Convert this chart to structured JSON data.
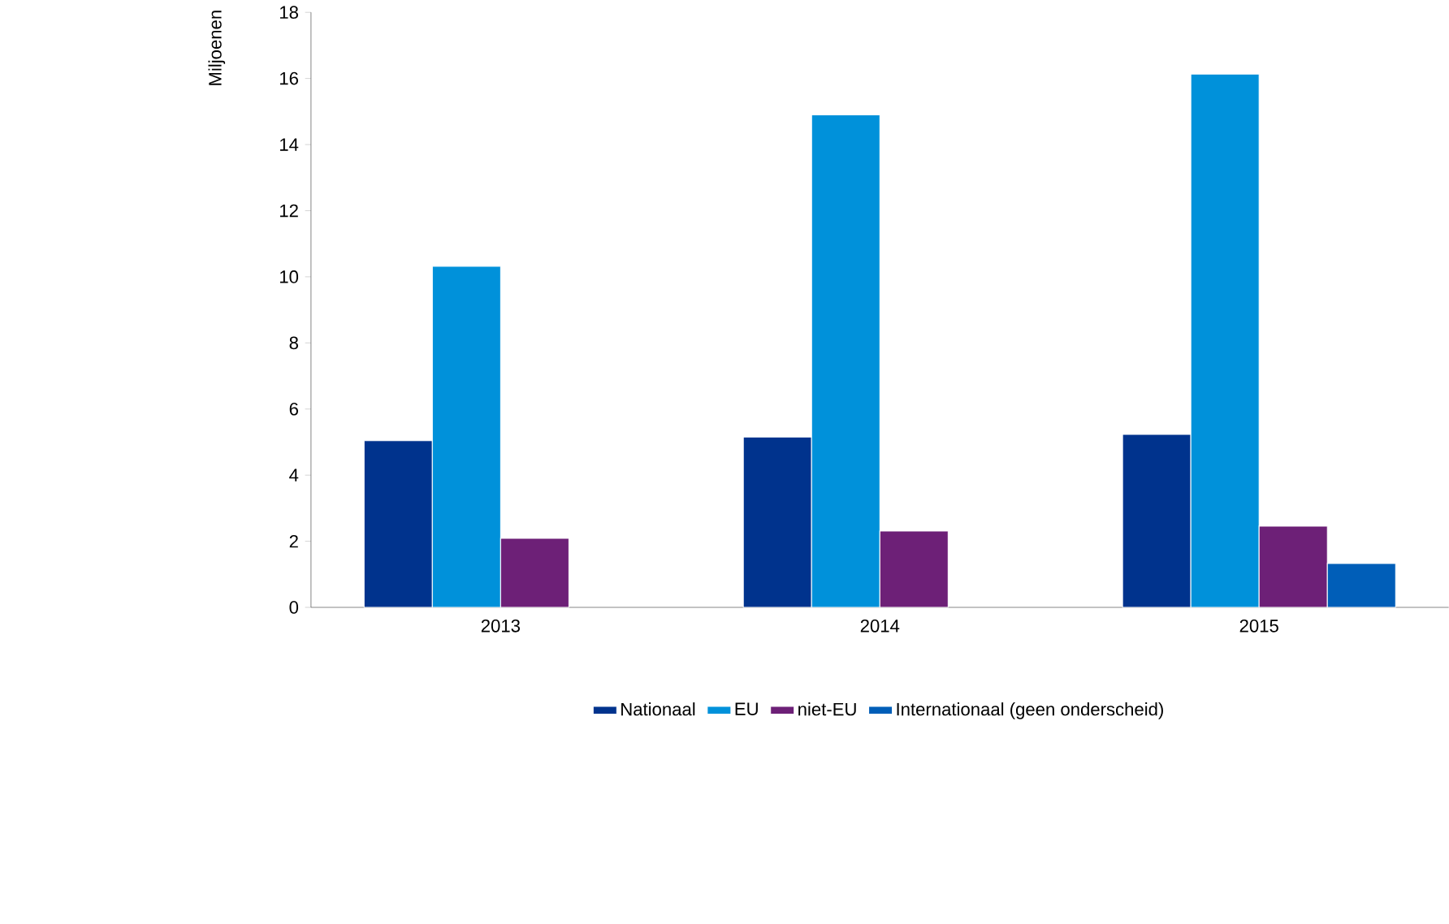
{
  "chart_data": {
    "type": "bar",
    "ylabel": "Miljoenen",
    "categories": [
      "2013",
      "2014",
      "2015"
    ],
    "series": [
      {
        "name": "Nationaal",
        "color": "#00338d",
        "values": [
          5.04,
          5.15,
          5.23
        ]
      },
      {
        "name": "EU",
        "color": "#0091da",
        "values": [
          10.32,
          14.9,
          16.13
        ]
      },
      {
        "name": "niet-EU",
        "color": "#6d2077",
        "values": [
          2.09,
          2.31,
          2.46
        ]
      },
      {
        "name": "Internationaal (geen onderscheid)",
        "color": "#005eb8",
        "values": [
          null,
          null,
          1.33
        ]
      }
    ],
    "ylim": [
      0,
      18
    ],
    "yticks": [
      0,
      2,
      4,
      6,
      8,
      10,
      12,
      14,
      16,
      18
    ],
    "grid": false,
    "legend": "bottom"
  }
}
